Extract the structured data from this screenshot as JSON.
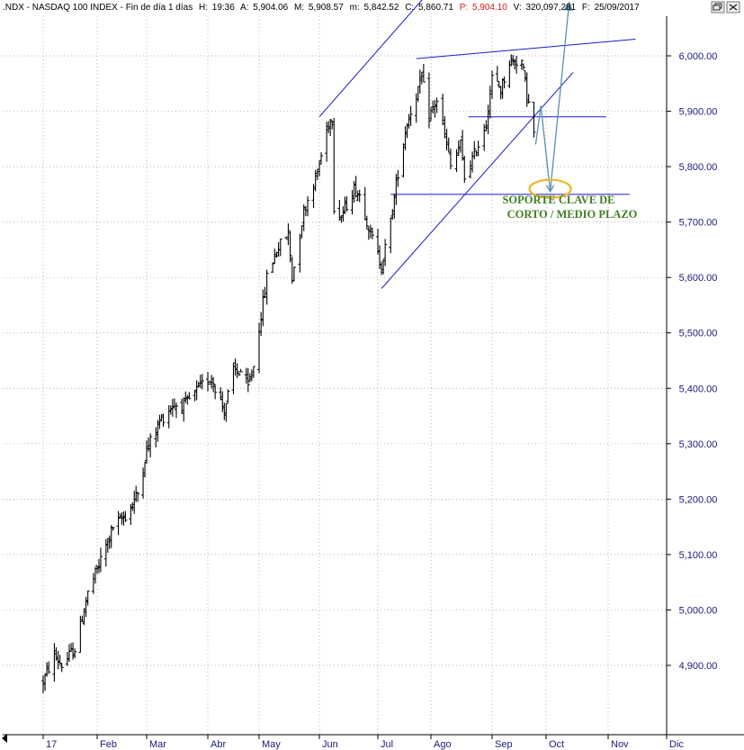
{
  "header": {
    "symbol": ".NDX - NASDAQ 100 INDEX - Fin de día 1 días",
    "h_label": "H:",
    "h_value": "19:36",
    "a_label": "A:",
    "a_value": "5,904.06",
    "m_label": "M:",
    "m_value": "5,908.57",
    "mn_label": "m:",
    "mn_value": "5,842.52",
    "c_label": "C:",
    "c_value": "5,860.71",
    "p_label": "P:",
    "p_value": "5,904.10",
    "v_label": "V:",
    "v_value": "320,097,281",
    "f_label": "F:",
    "f_value": "25/09/2017"
  },
  "colors": {
    "price_bars": "#000000",
    "trendlines": "#1a1acc",
    "projection": "#5a8fae",
    "support_ellipse": "#f0b429",
    "annotation": "#3f7f1f",
    "grid": "#9a9a9a",
    "header_values": "#1a1acc",
    "header_p_value": "#cc1a1a"
  },
  "icons": {
    "restore": "restore-window-icon",
    "close": "close-window-icon"
  },
  "chart_data": {
    "type": "ohlc",
    "title": "",
    "ylabel": "",
    "xlabel": "",
    "ylim": [
      4810,
      6080
    ],
    "y_ticks": [
      "4,900.00",
      "5,000.00",
      "5,100.00",
      "5,200.00",
      "5,300.00",
      "5,400.00",
      "5,500.00",
      "5,600.00",
      "5,700.00",
      "5,800.00",
      "5,900.00",
      "6,000.00"
    ],
    "y_tick_values": [
      4900,
      5000,
      5100,
      5200,
      5300,
      5400,
      5500,
      5600,
      5700,
      5800,
      5900,
      6000
    ],
    "x_ticks": [
      "17",
      "Feb",
      "Mar",
      "Abr",
      "May",
      "Jun",
      "Jul",
      "Ago",
      "Sep",
      "Oct",
      "Nov",
      "Dic"
    ],
    "x_tick_dates": [
      "2017-01-03",
      "2017-02-01",
      "2017-03-01",
      "2017-04-03",
      "2017-05-01",
      "2017-06-01",
      "2017-07-03",
      "2017-08-01",
      "2017-09-01",
      "2017-10-02",
      "2017-11-01",
      "2017-12-01"
    ],
    "grid": true,
    "price_anchors": [
      {
        "date": "2017-01-03",
        "value": 4870
      },
      {
        "date": "2017-01-09",
        "value": 4920
      },
      {
        "date": "2017-01-13",
        "value": 4900
      },
      {
        "date": "2017-01-20",
        "value": 4930
      },
      {
        "date": "2017-01-27",
        "value": 5030
      },
      {
        "date": "2017-02-03",
        "value": 5090
      },
      {
        "date": "2017-02-10",
        "value": 5150
      },
      {
        "date": "2017-02-17",
        "value": 5170
      },
      {
        "date": "2017-02-24",
        "value": 5210
      },
      {
        "date": "2017-03-01",
        "value": 5290
      },
      {
        "date": "2017-03-08",
        "value": 5340
      },
      {
        "date": "2017-03-15",
        "value": 5370
      },
      {
        "date": "2017-03-22",
        "value": 5370
      },
      {
        "date": "2017-03-29",
        "value": 5400
      },
      {
        "date": "2017-04-05",
        "value": 5420
      },
      {
        "date": "2017-04-12",
        "value": 5360
      },
      {
        "date": "2017-04-17",
        "value": 5430
      },
      {
        "date": "2017-04-21",
        "value": 5430
      },
      {
        "date": "2017-04-25",
        "value": 5400
      },
      {
        "date": "2017-04-28",
        "value": 5440
      },
      {
        "date": "2017-05-01",
        "value": 5510
      },
      {
        "date": "2017-05-05",
        "value": 5600
      },
      {
        "date": "2017-05-10",
        "value": 5650
      },
      {
        "date": "2017-05-16",
        "value": 5680
      },
      {
        "date": "2017-05-18",
        "value": 5600
      },
      {
        "date": "2017-05-24",
        "value": 5720
      },
      {
        "date": "2017-05-31",
        "value": 5790
      },
      {
        "date": "2017-06-06",
        "value": 5880
      },
      {
        "date": "2017-06-08",
        "value": 5890
      },
      {
        "date": "2017-06-09",
        "value": 5730
      },
      {
        "date": "2017-06-13",
        "value": 5710
      },
      {
        "date": "2017-06-20",
        "value": 5760
      },
      {
        "date": "2017-06-23",
        "value": 5750
      },
      {
        "date": "2017-06-29",
        "value": 5680
      },
      {
        "date": "2017-07-05",
        "value": 5620
      },
      {
        "date": "2017-07-10",
        "value": 5700
      },
      {
        "date": "2017-07-14",
        "value": 5790
      },
      {
        "date": "2017-07-19",
        "value": 5880
      },
      {
        "date": "2017-07-24",
        "value": 5930
      },
      {
        "date": "2017-07-27",
        "value": 5960
      },
      {
        "date": "2017-07-31",
        "value": 5890
      },
      {
        "date": "2017-08-04",
        "value": 5920
      },
      {
        "date": "2017-08-09",
        "value": 5840
      },
      {
        "date": "2017-08-11",
        "value": 5800
      },
      {
        "date": "2017-08-16",
        "value": 5840
      },
      {
        "date": "2017-08-18",
        "value": 5780
      },
      {
        "date": "2017-08-24",
        "value": 5830
      },
      {
        "date": "2017-08-29",
        "value": 5880
      },
      {
        "date": "2017-09-01",
        "value": 5960
      },
      {
        "date": "2017-09-06",
        "value": 5940
      },
      {
        "date": "2017-09-11",
        "value": 5990
      },
      {
        "date": "2017-09-14",
        "value": 5990
      },
      {
        "date": "2017-09-18",
        "value": 5990
      },
      {
        "date": "2017-09-21",
        "value": 5930
      },
      {
        "date": "2017-09-25",
        "value": 5860
      }
    ],
    "annotations": [
      {
        "text": "SOPORTE CLAVE DE"
      },
      {
        "text": "CORTO / MEDIO PLAZO"
      }
    ],
    "lines": [
      {
        "name": "upper-channel-line",
        "from": {
          "date": "2017-06-01",
          "value": 5890
        },
        "to": {
          "date": "2017-09-22",
          "value": 6320
        }
      },
      {
        "name": "top-resistance-line",
        "from": {
          "date": "2017-07-24",
          "value": 5995
        },
        "to": {
          "date": "2017-11-15",
          "value": 6030
        }
      },
      {
        "name": "rising-support-line",
        "from": {
          "date": "2017-07-05",
          "value": 5580
        },
        "to": {
          "date": "2017-10-15",
          "value": 5970
        }
      },
      {
        "name": "support-line",
        "from": {
          "date": "2017-07-10",
          "value": 5750
        },
        "to": {
          "date": "2017-11-12",
          "value": 5750
        }
      },
      {
        "name": "neckline",
        "from": {
          "date": "2017-08-20",
          "value": 5890
        },
        "to": {
          "date": "2017-10-31",
          "value": 5890
        }
      }
    ],
    "projection": [
      {
        "date": "2017-09-26",
        "value": 5840
      },
      {
        "date": "2017-09-29",
        "value": 5910
      },
      {
        "date": "2017-10-04",
        "value": 5755
      },
      {
        "date": "2017-10-13",
        "value": 6090
      }
    ],
    "support_ellipse": {
      "date": "2017-10-04",
      "value": 5760
    }
  }
}
